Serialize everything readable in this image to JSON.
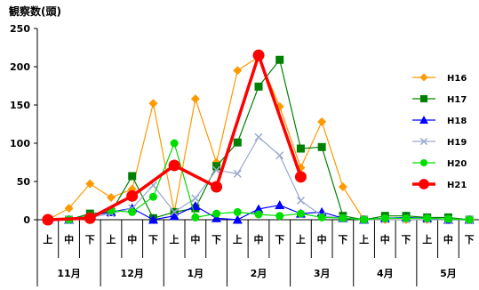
{
  "chart_data": {
    "type": "line",
    "ylabel": "観察数(頭)",
    "ylim": [
      0,
      250
    ],
    "yticks": [
      0,
      50,
      100,
      150,
      200,
      250
    ],
    "categories": [
      "上",
      "中",
      "下",
      "上",
      "中",
      "下",
      "上",
      "中",
      "下",
      "上",
      "中",
      "下",
      "上",
      "中",
      "下",
      "上",
      "中",
      "下",
      "上",
      "中",
      "下"
    ],
    "months": [
      "11月",
      "12月",
      "1月",
      "2月",
      "3月",
      "4月",
      "5月"
    ],
    "legend_position": "right",
    "series": [
      {
        "name": "H16",
        "color": "#FF9900",
        "marker": "diamond",
        "width": 1.2,
        "values": [
          0,
          15,
          47,
          29,
          40,
          152,
          10,
          158,
          75,
          195,
          213,
          148,
          68,
          128,
          43,
          0,
          0,
          0,
          0,
          0,
          0
        ]
      },
      {
        "name": "H17",
        "color": "#008000",
        "marker": "square",
        "width": 1.2,
        "values": [
          0,
          0,
          8,
          10,
          57,
          2,
          10,
          15,
          70,
          101,
          174,
          209,
          93,
          95,
          5,
          0,
          5,
          5,
          3,
          3,
          0
        ]
      },
      {
        "name": "H18",
        "color": "#0000FF",
        "marker": "triangle",
        "width": 1.2,
        "values": [
          0,
          0,
          5,
          10,
          15,
          0,
          5,
          18,
          2,
          0,
          14,
          19,
          8,
          10,
          2,
          0,
          2,
          3,
          2,
          0,
          0
        ]
      },
      {
        "name": "H19",
        "color": "#99A8CC",
        "marker": "x",
        "width": 1.2,
        "values": [
          0,
          0,
          3,
          8,
          15,
          45,
          10,
          28,
          65,
          60,
          108,
          84,
          25,
          5,
          2,
          0,
          0,
          0,
          0,
          0,
          0
        ]
      },
      {
        "name": "H20",
        "color": "#00DD00",
        "marker": "circle-small",
        "width": 1.2,
        "values": [
          0,
          0,
          5,
          12,
          10,
          30,
          100,
          3,
          8,
          10,
          7,
          5,
          8,
          3,
          2,
          0,
          2,
          2,
          2,
          1,
          0
        ]
      },
      {
        "name": "H21",
        "color": "#FF0000",
        "marker": "circle",
        "width": 3.5,
        "values": [
          0,
          null,
          2,
          null,
          31,
          null,
          71,
          null,
          43,
          null,
          215,
          null,
          56,
          null,
          null,
          null,
          null,
          null,
          null,
          null,
          null
        ]
      }
    ]
  }
}
